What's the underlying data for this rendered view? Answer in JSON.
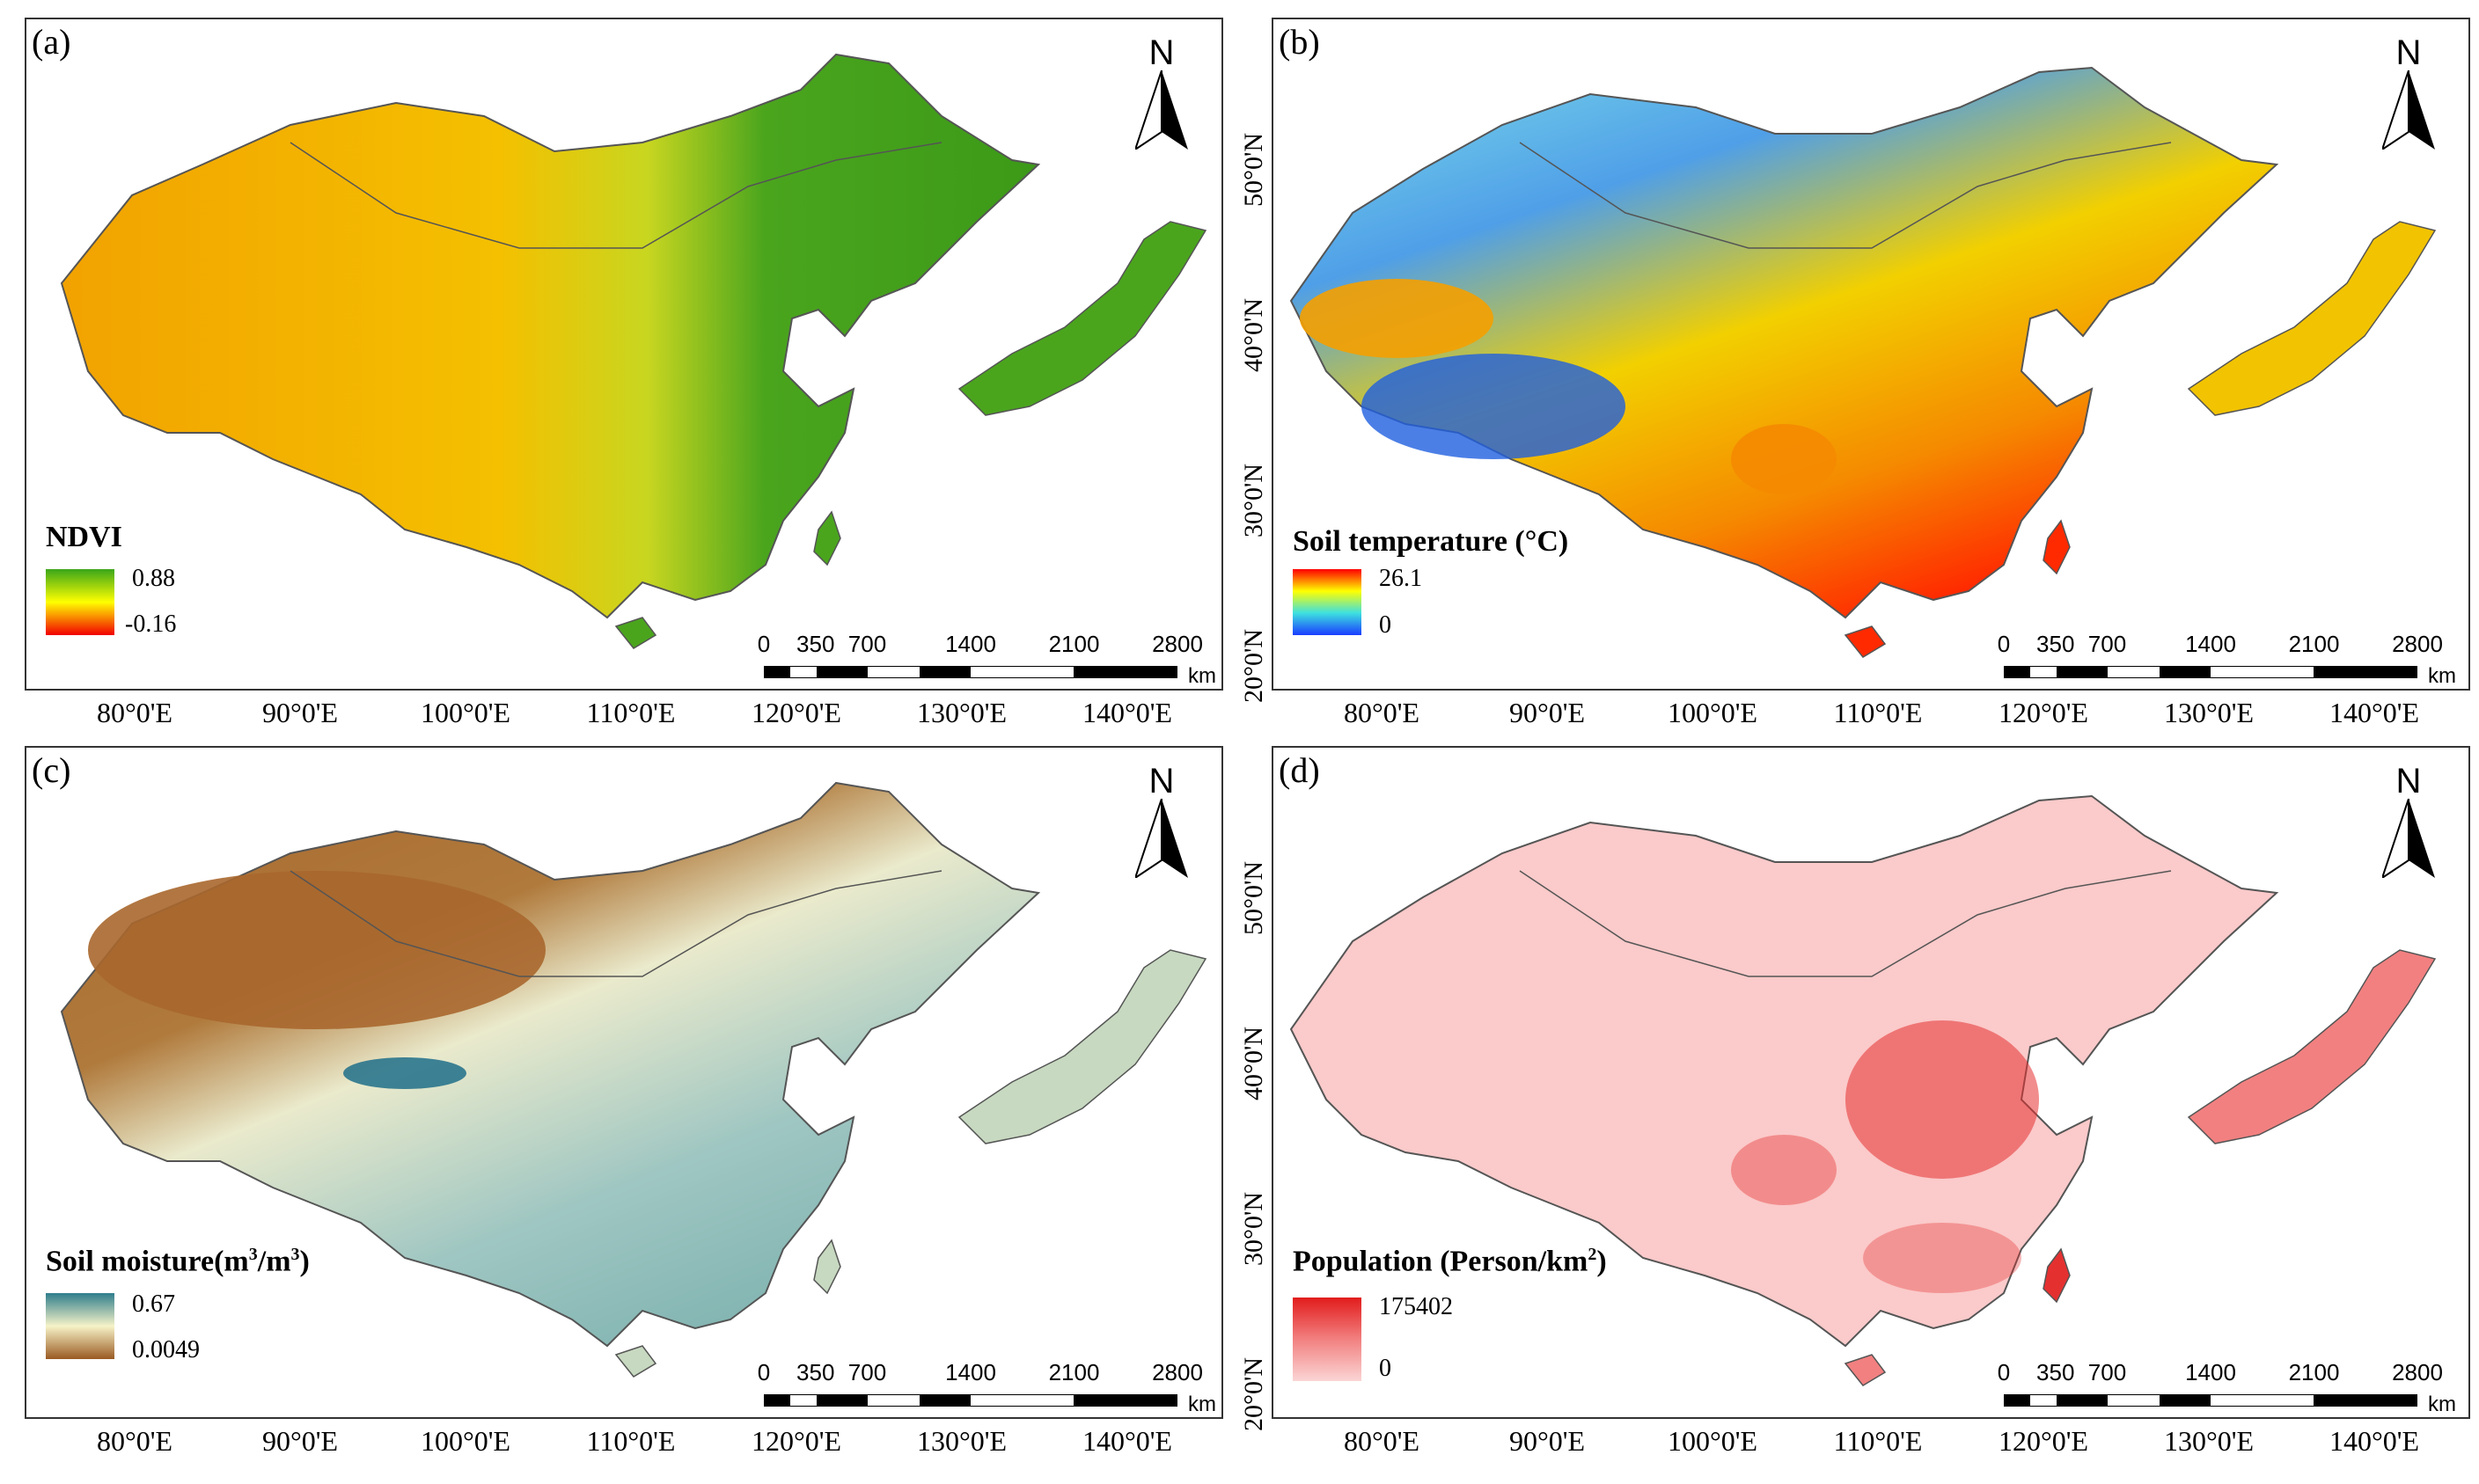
{
  "panels": [
    {
      "id": "a",
      "letter": "(a)",
      "legend": {
        "title": "NDVI",
        "max": "0.88",
        "min": "-0.16",
        "top": "#3aa61a",
        "bottom": "#f20000",
        "mid": "#ffff00"
      }
    },
    {
      "id": "b",
      "letter": "(b)",
      "legend": {
        "title": "Soil temperature (°C)",
        "max": "26.1",
        "min": "0",
        "top": "#ff0000",
        "bottom": "#1a3cff",
        "mid": "#ffff00"
      }
    },
    {
      "id": "c",
      "letter": "(c)",
      "legend": {
        "title": "Soil moisture(m",
        "sup1": "3",
        "mid_text": "/m",
        "sup2": "3",
        "end_text": ")",
        "max": "0.67",
        "min": "0.0049",
        "top": "#2e7d8c",
        "bottom": "#9a5a22",
        "mid": "#f6f3c8"
      }
    },
    {
      "id": "d",
      "letter": "(d)",
      "legend": {
        "title": "Population (Person/km",
        "sup1": "2",
        "end_text": ")",
        "max": "175402",
        "min": "0",
        "top": "#e21c1c",
        "bottom": "#fbd5d5",
        "mid": "#f28080"
      }
    }
  ],
  "north_label": "N",
  "scale_bar": {
    "labels": [
      "0",
      "350",
      "700",
      "1400",
      "2100",
      "2800"
    ],
    "unit": "km"
  },
  "x_ticks": [
    "80°0'E",
    "90°0'E",
    "100°0'E",
    "110°0'E",
    "120°0'E",
    "130°0'E",
    "140°0'E"
  ],
  "y_ticks": [
    "50°0'N",
    "40°0'N",
    "30°0'N",
    "20°0'N"
  ],
  "map_colors": {
    "a": {
      "west": "#f2a200",
      "mid": "#e8d800",
      "east": "#4aa51d",
      "lakes": "#e02020"
    },
    "b": {
      "basin": "#f5a000",
      "cold": "#1f5fe0",
      "mild": "#7fdfe8",
      "warm": "#f2c300",
      "south": "#ff2a00"
    },
    "c": {
      "dry": "#a8672d",
      "semidry": "#d9c08a",
      "mid": "#eaeacc",
      "wet": "#8fbcb8",
      "lake": "#1f6f8a"
    },
    "d": {
      "base": "#fbcaca",
      "dense": "#e53030",
      "sea": "#ffffff"
    }
  }
}
